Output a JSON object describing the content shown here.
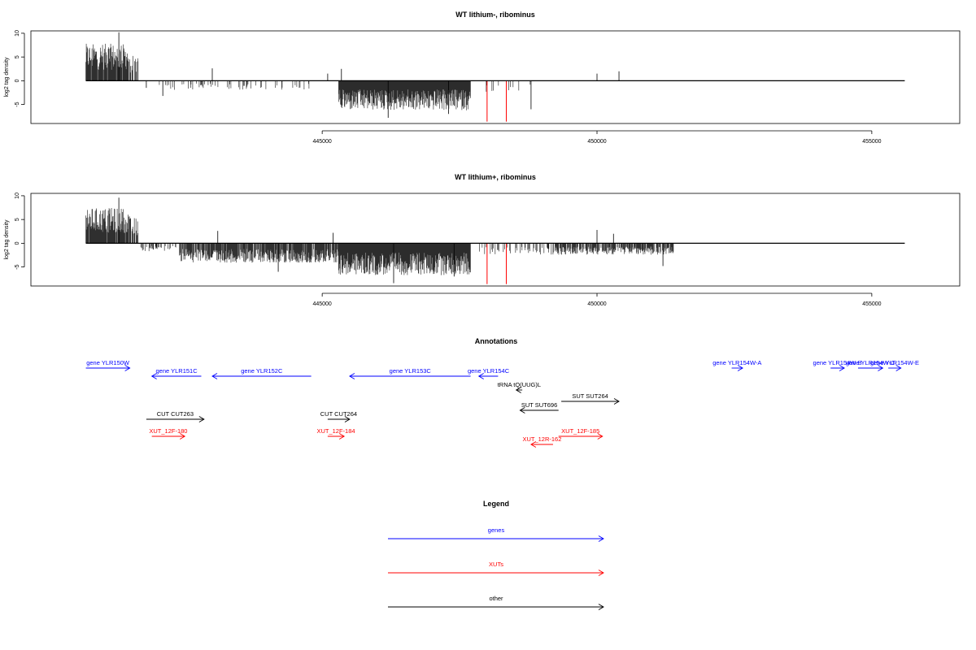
{
  "colors": {
    "gene": "#0000ff",
    "xut": "#ff0000",
    "other": "#000000",
    "bar": "#000000",
    "highlight": "#ff0000"
  },
  "chart_data": [
    {
      "type": "bar",
      "title": "WT lithium-, ribominus",
      "ylabel": "log2 tag density",
      "xlim": [
        439700,
        456600
      ],
      "ylim": [
        -9,
        10.5
      ],
      "xticks": [
        445000,
        450000,
        455000
      ],
      "yticks": [
        10,
        5,
        0,
        -5
      ],
      "baseline_range": [
        440700,
        455600
      ],
      "grid": false,
      "segments": [
        {
          "from": 440700,
          "to": 441500,
          "sign": 1,
          "level": 6.5,
          "density": 0.9
        },
        {
          "from": 441500,
          "to": 441650,
          "sign": 1,
          "level": 4.5,
          "density": 0.7
        },
        {
          "from": 442000,
          "to": 444800,
          "sign": -1,
          "level": 1.6,
          "density": 0.14
        },
        {
          "from": 445300,
          "to": 447700,
          "sign": -1,
          "level": 5.2,
          "density": 1.0
        },
        {
          "from": 447800,
          "to": 448800,
          "sign": -1,
          "level": 2.2,
          "density": 0.08
        }
      ],
      "spikes": [
        {
          "x": 441300,
          "y": 10.2
        },
        {
          "x": 441800,
          "y": -1.5
        },
        {
          "x": 442100,
          "y": -3.2
        },
        {
          "x": 443000,
          "y": 2.6
        },
        {
          "x": 445100,
          "y": 1.5
        },
        {
          "x": 445350,
          "y": 2.5
        },
        {
          "x": 446200,
          "y": -7.8
        },
        {
          "x": 447300,
          "y": -7.0
        },
        {
          "x": 448800,
          "y": -6.0
        },
        {
          "x": 450000,
          "y": 1.5
        },
        {
          "x": 450400,
          "y": 2.0
        }
      ],
      "highlights": [
        {
          "x": 448000,
          "y": -8.6
        },
        {
          "x": 448350,
          "y": -8.6
        }
      ]
    },
    {
      "type": "bar",
      "title": "WT lithium+, ribominus",
      "ylabel": "log2 tag density",
      "xlim": [
        439700,
        456600
      ],
      "ylim": [
        -9,
        10.5
      ],
      "xticks": [
        445000,
        450000,
        455000
      ],
      "yticks": [
        10,
        5,
        0,
        -5
      ],
      "baseline_range": [
        440700,
        455600
      ],
      "grid": false,
      "segments": [
        {
          "from": 440700,
          "to": 441500,
          "sign": 1,
          "level": 6.2,
          "density": 0.9
        },
        {
          "from": 441500,
          "to": 441650,
          "sign": 1,
          "level": 4.5,
          "density": 0.7
        },
        {
          "from": 441700,
          "to": 442400,
          "sign": -1,
          "level": 1.4,
          "density": 0.35
        },
        {
          "from": 442400,
          "to": 445300,
          "sign": -1,
          "level": 3.4,
          "density": 0.85
        },
        {
          "from": 445300,
          "to": 447700,
          "sign": -1,
          "level": 5.6,
          "density": 1.0
        },
        {
          "from": 447800,
          "to": 449200,
          "sign": -1,
          "level": 2.0,
          "density": 0.25
        },
        {
          "from": 449200,
          "to": 451400,
          "sign": -1,
          "level": 2.0,
          "density": 0.75
        }
      ],
      "spikes": [
        {
          "x": 441300,
          "y": 9.6
        },
        {
          "x": 443100,
          "y": 2.6
        },
        {
          "x": 444200,
          "y": -6.0
        },
        {
          "x": 445200,
          "y": 2.2
        },
        {
          "x": 446300,
          "y": -8.4
        },
        {
          "x": 447400,
          "y": -7.0
        },
        {
          "x": 450000,
          "y": 2.8
        },
        {
          "x": 450300,
          "y": 2.0
        },
        {
          "x": 451200,
          "y": -4.8
        }
      ],
      "highlights": [
        {
          "x": 448000,
          "y": -8.6
        },
        {
          "x": 448350,
          "y": -8.6
        }
      ]
    }
  ],
  "annotations": {
    "title": "Annotations",
    "items": [
      {
        "label": "gene YLR150W",
        "type": "gene",
        "start": 440700,
        "end": 441500,
        "strand": "+",
        "row": 0
      },
      {
        "label": "gene YLR151C",
        "type": "gene",
        "start": 441900,
        "end": 442800,
        "strand": "-",
        "row": 1
      },
      {
        "label": "gene YLR152C",
        "type": "gene",
        "start": 443000,
        "end": 444800,
        "strand": "-",
        "row": 1
      },
      {
        "label": "gene YLR153C",
        "type": "gene",
        "start": 445500,
        "end": 447700,
        "strand": "-",
        "row": 1
      },
      {
        "label": "gene YLR154C",
        "type": "gene",
        "start": 447850,
        "end": 448200,
        "strand": "-",
        "row": 1
      },
      {
        "label": "gene YLR154W-A",
        "type": "gene",
        "start": 452450,
        "end": 452650,
        "strand": "+",
        "row": 0
      },
      {
        "label": "gene YLR154W-B",
        "type": "gene",
        "start": 454250,
        "end": 454500,
        "strand": "+",
        "row": 0
      },
      {
        "label": "gene YLR154W-C",
        "type": "gene",
        "start": 454750,
        "end": 455200,
        "strand": "+",
        "row": 0
      },
      {
        "label": "gene YLR154W-E",
        "type": "gene",
        "start": 455300,
        "end": 455530,
        "strand": "+",
        "row": 0
      },
      {
        "label": "tRNA tQ(UUG)L",
        "type": "other",
        "start": 448530,
        "end": 448640,
        "strand": "-",
        "row": 2
      },
      {
        "label": "SUT SUT696",
        "type": "other",
        "start": 448600,
        "end": 449300,
        "strand": "-",
        "row": 3
      },
      {
        "label": "SUT SUT264",
        "type": "other",
        "start": 449350,
        "end": 450400,
        "strand": "+",
        "row": 4
      },
      {
        "label": "CUT CUT263",
        "type": "other",
        "start": 441800,
        "end": 442850,
        "strand": "+",
        "row": 5
      },
      {
        "label": "CUT CUT264",
        "type": "other",
        "start": 445100,
        "end": 445500,
        "strand": "+",
        "row": 5
      },
      {
        "label": "XUT_12F-180",
        "type": "xut",
        "start": 441900,
        "end": 442500,
        "strand": "+",
        "row": 6
      },
      {
        "label": "XUT_12F-184",
        "type": "xut",
        "start": 445100,
        "end": 445400,
        "strand": "+",
        "row": 6
      },
      {
        "label": "XUT_12F-185",
        "type": "xut",
        "start": 449300,
        "end": 450100,
        "strand": "+",
        "row": 6
      },
      {
        "label": "XUT_12R-162",
        "type": "xut",
        "start": 448800,
        "end": 449200,
        "strand": "-",
        "row": 7
      }
    ]
  },
  "legend": {
    "title": "Legend",
    "entries": [
      {
        "label": "genes",
        "type": "gene"
      },
      {
        "label": "XUTs",
        "type": "xut"
      },
      {
        "label": "other",
        "type": "other"
      }
    ]
  }
}
